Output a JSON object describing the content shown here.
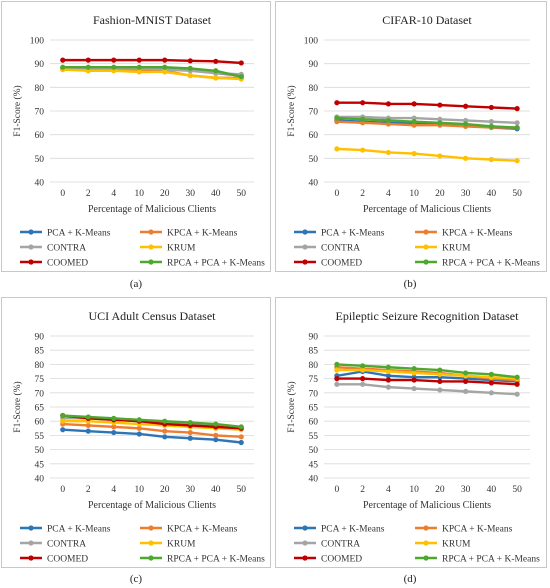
{
  "x_categories": [
    "0",
    "2",
    "4",
    "10",
    "20",
    "30",
    "40",
    "50"
  ],
  "colors": {
    "PCA + K-Means": "#2e75b6",
    "KPCA + K-Means": "#ed7d31",
    "CONTRA": "#a5a5a5",
    "KRUM": "#ffc000",
    "COOMED": "#c00000",
    "RPCA + PCA + K-Means": "#4ea72e"
  },
  "chart_data": [
    {
      "type": "line",
      "title": "Fashion-MNIST Dataset",
      "caption": "(a)",
      "xlabel": "Percentage of Malicious Clients",
      "ylabel": "F1-Score (%)",
      "ylim": [
        40,
        100
      ],
      "yticks": [
        "40",
        "50",
        "60",
        "70",
        "80",
        "90",
        "100"
      ],
      "categories": [
        "0",
        "2",
        "4",
        "10",
        "20",
        "30",
        "40",
        "50"
      ],
      "legend_position": "bottom",
      "series": [
        {
          "name": "PCA + K-Means",
          "values": [
            88,
            88,
            88,
            88,
            88,
            87.5,
            86,
            85
          ]
        },
        {
          "name": "KPCA + K-Means",
          "values": [
            87.5,
            87.5,
            87.5,
            87,
            87,
            85,
            84,
            84
          ]
        },
        {
          "name": "CONTRA",
          "values": [
            88,
            88,
            88,
            88,
            87.5,
            87,
            86,
            85.5
          ]
        },
        {
          "name": "KRUM",
          "values": [
            87.5,
            87,
            87,
            86.5,
            86.5,
            85,
            84,
            83.5
          ]
        },
        {
          "name": "COOMED",
          "values": [
            91.5,
            91.5,
            91.5,
            91.5,
            91.5,
            91.2,
            91,
            90.3
          ]
        },
        {
          "name": "RPCA + PCA + K-Means",
          "values": [
            88.5,
            88.5,
            88.5,
            88.5,
            88.5,
            88,
            87,
            84.5
          ]
        }
      ]
    },
    {
      "type": "line",
      "title": "CIFAR-10 Dataset",
      "caption": "(b)",
      "xlabel": "Percentage of Malicious Clients",
      "ylabel": "F1-Score (%)",
      "ylim": [
        40,
        100
      ],
      "yticks": [
        "40",
        "50",
        "60",
        "70",
        "80",
        "90",
        "100"
      ],
      "categories": [
        "0",
        "2",
        "4",
        "10",
        "20",
        "30",
        "40",
        "50"
      ],
      "legend_position": "bottom",
      "series": [
        {
          "name": "PCA + K-Means",
          "values": [
            66,
            65.5,
            65,
            65,
            64.5,
            64,
            63,
            62.5
          ]
        },
        {
          "name": "KPCA + K-Means",
          "values": [
            65.5,
            65,
            64.5,
            64,
            64,
            63.5,
            63,
            63
          ]
        },
        {
          "name": "CONTRA",
          "values": [
            67.5,
            67.5,
            67,
            67,
            66.5,
            66,
            65.5,
            65
          ]
        },
        {
          "name": "KRUM",
          "values": [
            54,
            53.5,
            52.5,
            52,
            51,
            50,
            49.5,
            49
          ]
        },
        {
          "name": "COOMED",
          "values": [
            73.5,
            73.5,
            73,
            73,
            72.5,
            72,
            71.5,
            71
          ]
        },
        {
          "name": "RPCA + PCA + K-Means",
          "values": [
            67,
            66.5,
            66,
            65.5,
            65,
            64.5,
            63.5,
            63
          ]
        }
      ]
    },
    {
      "type": "line",
      "title": "UCI Adult Census Dataset",
      "caption": "(c)",
      "xlabel": "Percentage of Malicious Clients",
      "ylabel": "F1-Score (%)",
      "ylim": [
        40,
        90
      ],
      "yticks": [
        "40",
        "45",
        "50",
        "55",
        "60",
        "65",
        "70",
        "75",
        "80",
        "85",
        "90"
      ],
      "categories": [
        "0",
        "2",
        "4",
        "10",
        "20",
        "30",
        "40",
        "50"
      ],
      "legend_position": "bottom",
      "series": [
        {
          "name": "PCA + K-Means",
          "values": [
            57,
            56.5,
            56,
            55.5,
            54.5,
            54,
            53.5,
            52.5
          ]
        },
        {
          "name": "KPCA + K-Means",
          "values": [
            59,
            58.5,
            58,
            57.5,
            56.5,
            56,
            55,
            54.5
          ]
        },
        {
          "name": "CONTRA",
          "values": [
            61,
            61,
            60.5,
            60,
            59.5,
            59,
            58.5,
            57.5
          ]
        },
        {
          "name": "KRUM",
          "values": [
            60,
            60,
            59.5,
            59,
            58.5,
            58,
            57.5,
            57
          ]
        },
        {
          "name": "COOMED",
          "values": [
            62,
            61,
            60.5,
            60,
            59,
            58.5,
            58,
            57.5
          ]
        },
        {
          "name": "RPCA + PCA + K-Means",
          "values": [
            62,
            61.5,
            61,
            60.5,
            60,
            59.5,
            59,
            58
          ]
        }
      ]
    },
    {
      "type": "line",
      "title": "Epileptic Seizure Recognition Dataset",
      "caption": "(d)",
      "xlabel": "Percentage of Malicious Clients",
      "ylabel": "F1-Score (%)",
      "ylim": [
        40,
        90
      ],
      "yticks": [
        "40",
        "45",
        "50",
        "55",
        "60",
        "65",
        "70",
        "75",
        "80",
        "85",
        "90"
      ],
      "categories": [
        "0",
        "2",
        "4",
        "10",
        "20",
        "30",
        "40",
        "50"
      ],
      "legend_position": "bottom",
      "series": [
        {
          "name": "PCA + K-Means",
          "values": [
            76,
            77.5,
            76,
            75.5,
            75.5,
            75,
            74.5,
            74
          ]
        },
        {
          "name": "KPCA + K-Means",
          "values": [
            79,
            78.5,
            78,
            77.5,
            77,
            76,
            75,
            74.5
          ]
        },
        {
          "name": "CONTRA",
          "values": [
            73,
            73,
            72,
            71.5,
            71,
            70.5,
            70,
            69.5
          ]
        },
        {
          "name": "KRUM",
          "values": [
            78,
            78,
            77.5,
            77,
            76.5,
            76,
            75.5,
            75
          ]
        },
        {
          "name": "COOMED",
          "values": [
            75,
            75,
            74.5,
            74.5,
            74,
            74,
            73.5,
            73
          ]
        },
        {
          "name": "RPCA + PCA + K-Means",
          "values": [
            80,
            79.5,
            79,
            78.5,
            78,
            77,
            76.5,
            75.5
          ]
        }
      ]
    }
  ]
}
